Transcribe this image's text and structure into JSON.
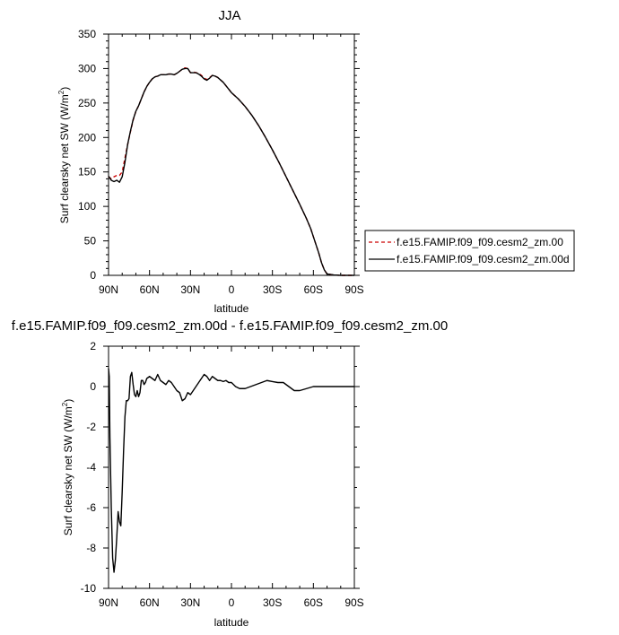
{
  "chart_data": [
    {
      "type": "line",
      "title": "JJA",
      "xlabel": "latitude",
      "ylabel": "Surf clearsky net SW",
      "yunits": "(W/m",
      "yunits_sup": "2",
      "yunits_close": ")",
      "xlim": [
        90,
        -90
      ],
      "ylim": [
        0,
        350
      ],
      "xticks": [
        90,
        60,
        30,
        0,
        -30,
        -60,
        -90
      ],
      "xtick_labels": [
        "90N",
        "60N",
        "30N",
        "0",
        "30S",
        "60S",
        "90S"
      ],
      "yticks": [
        0,
        50,
        100,
        150,
        200,
        250,
        300,
        350
      ],
      "ytick_labels": [
        "0",
        "50",
        "100",
        "150",
        "200",
        "250",
        "300",
        "350"
      ],
      "grid": false,
      "legend_position": "right",
      "series": [
        {
          "name": "f.e15.FAMIP.f09_f09.cesm2_zm.00",
          "color": "#cc0000",
          "dash": "dashed",
          "x": [
            90,
            88,
            86,
            84,
            82,
            80,
            78,
            76,
            74,
            72,
            70,
            68,
            66,
            64,
            62,
            60,
            58,
            56,
            54,
            52,
            50,
            48,
            46,
            44,
            42,
            40,
            38,
            36,
            34,
            32,
            30,
            28,
            26,
            24,
            22,
            20,
            18,
            16,
            14,
            12,
            10,
            6,
            2,
            0,
            -5,
            -10,
            -15,
            -20,
            -25,
            -30,
            -35,
            -40,
            -45,
            -50,
            -55,
            -58,
            -60,
            -62,
            -64,
            -66,
            -68,
            -70,
            -75,
            -80,
            -85,
            -90
          ],
          "y": [
            143,
            140,
            143,
            145,
            145,
            150,
            170,
            190,
            208,
            225,
            238,
            246,
            256,
            266,
            274,
            280,
            285,
            288,
            289,
            291,
            291,
            291,
            292,
            292,
            291,
            293,
            296,
            299,
            301,
            300,
            294,
            295,
            294,
            293,
            290,
            286,
            284,
            287,
            290,
            289,
            287,
            280,
            270,
            265,
            256,
            245,
            232,
            217,
            200,
            182,
            163,
            143,
            123,
            103,
            82,
            68,
            56,
            44,
            32,
            18,
            8,
            2,
            0.5,
            0,
            0,
            0
          ]
        },
        {
          "name": "f.e15.FAMIP.f09_f09.cesm2_zm.00d",
          "color": "#000000",
          "dash": "solid",
          "x": [
            90,
            88,
            86,
            84,
            82,
            80,
            78,
            76,
            74,
            72,
            70,
            68,
            66,
            64,
            62,
            60,
            58,
            56,
            54,
            52,
            50,
            48,
            46,
            44,
            42,
            40,
            38,
            36,
            34,
            32,
            30,
            28,
            26,
            24,
            22,
            20,
            18,
            16,
            14,
            12,
            10,
            6,
            2,
            0,
            -5,
            -10,
            -15,
            -20,
            -25,
            -30,
            -35,
            -40,
            -45,
            -50,
            -55,
            -58,
            -60,
            -62,
            -64,
            -66,
            -68,
            -70,
            -75,
            -80,
            -85,
            -90
          ],
          "y": [
            144,
            138,
            136,
            138,
            135,
            143,
            164,
            190,
            209,
            226,
            238,
            246,
            256,
            266,
            274,
            280,
            285,
            288,
            289,
            291,
            291,
            291,
            292,
            292,
            291,
            293,
            296,
            299,
            300,
            300,
            294,
            294,
            294,
            292,
            289,
            285,
            283,
            286,
            290,
            289,
            287,
            280,
            270,
            265,
            256,
            245,
            232,
            217,
            200,
            182,
            163,
            143,
            123,
            103,
            82,
            68,
            56,
            44,
            32,
            18,
            8,
            2,
            0.5,
            0,
            0,
            0
          ]
        }
      ]
    },
    {
      "type": "line",
      "title": "f.e15.FAMIP.f09_f09.cesm2_zm.00d - f.e15.FAMIP.f09_f09.cesm2_zm.00",
      "xlabel": "latitude",
      "ylabel": "Surf clearsky net SW",
      "yunits": "(W/m",
      "yunits_sup": "2",
      "yunits_close": ")",
      "xlim": [
        90,
        -90
      ],
      "ylim": [
        -10,
        2
      ],
      "xticks": [
        90,
        60,
        30,
        0,
        -30,
        -60,
        -90
      ],
      "xtick_labels": [
        "90N",
        "60N",
        "30N",
        "0",
        "30S",
        "60S",
        "90S"
      ],
      "yticks": [
        -10,
        -8,
        -6,
        -4,
        -2,
        0,
        2
      ],
      "ytick_labels": [
        "-10",
        "-8",
        "-6",
        "-4",
        "-2",
        "0",
        "2"
      ],
      "grid": false,
      "series": [
        {
          "color": "#000000",
          "dash": "solid",
          "x": [
            90,
            89.5,
            89,
            88,
            87,
            86,
            85,
            84,
            83,
            82,
            81,
            80,
            79,
            78,
            77,
            76,
            75,
            74,
            73,
            72,
            71,
            70,
            69,
            68,
            67,
            66,
            65,
            64,
            63,
            62,
            60,
            58,
            56,
            54,
            52,
            50,
            48,
            46,
            44,
            42,
            40,
            38,
            36,
            34,
            32,
            30,
            28,
            26,
            24,
            22,
            20,
            18,
            16,
            14,
            12,
            10,
            8,
            6,
            4,
            2,
            0,
            -3,
            -6,
            -10,
            -14,
            -18,
            -22,
            -26,
            -30,
            -34,
            -38,
            -42,
            -46,
            -50,
            -55,
            -60,
            -65,
            -70,
            -80,
            -90
          ],
          "y": [
            0.9,
            0.5,
            -2.5,
            -6,
            -8.5,
            -9.2,
            -8.6,
            -7.5,
            -6.2,
            -6.7,
            -6.9,
            -5.2,
            -3.2,
            -1.5,
            -0.7,
            -0.7,
            -0.6,
            0.5,
            0.7,
            0.1,
            -0.4,
            -0.5,
            -0.2,
            -0.5,
            -0.3,
            0.3,
            0.3,
            0.1,
            0.2,
            0.4,
            0.5,
            0.4,
            0.3,
            0.6,
            0.3,
            0.2,
            0.1,
            0.3,
            0.2,
            0.0,
            -0.2,
            -0.3,
            -0.7,
            -0.6,
            -0.3,
            -0.4,
            -0.2,
            0.0,
            0.2,
            0.4,
            0.6,
            0.5,
            0.3,
            0.5,
            0.4,
            0.3,
            0.3,
            0.25,
            0.3,
            0.2,
            0.2,
            0.0,
            -0.1,
            -0.1,
            0.0,
            0.1,
            0.2,
            0.3,
            0.25,
            0.2,
            0.2,
            0.0,
            -0.2,
            -0.2,
            -0.1,
            0.0,
            0.0,
            0.0,
            0.0,
            0.0
          ]
        }
      ]
    }
  ]
}
